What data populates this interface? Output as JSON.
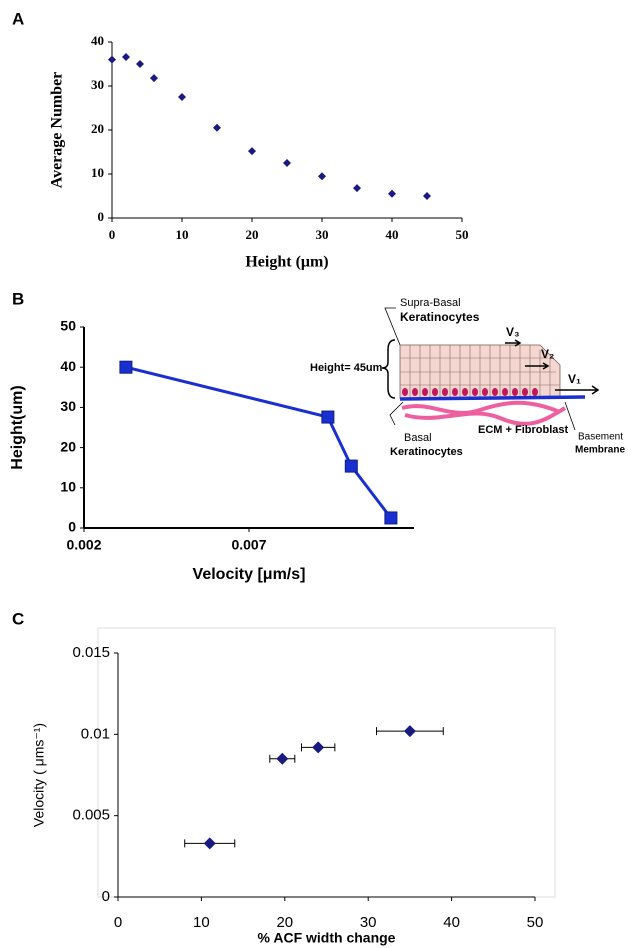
{
  "chart_data": [
    {
      "type": "scatter",
      "panel": "A",
      "x_label": "Height (μm)",
      "y_label": "Average Number",
      "x": [
        0,
        2,
        4,
        6,
        10,
        15,
        20,
        25,
        30,
        35,
        40,
        45
      ],
      "values": [
        36,
        36.6,
        35,
        31.8,
        27.5,
        20.5,
        15.2,
        12.5,
        9.5,
        6.8,
        5.5,
        5
      ],
      "xlim": [
        0,
        50
      ],
      "ylim": [
        0,
        40
      ],
      "xticks": [
        0,
        10,
        20,
        30,
        40,
        50
      ],
      "yticks": [
        0,
        10,
        20,
        30,
        40
      ],
      "color": "#1a1a80",
      "marker": "diamond"
    },
    {
      "type": "line",
      "panel": "B",
      "x_label": "Velocity [μm/s]",
      "y_label": "Height(um)",
      "x": [
        0.00327,
        0.00939,
        0.0101,
        0.0113
      ],
      "values": [
        40,
        27.6,
        15.4,
        2.5
      ],
      "xlim": [
        0.002,
        0.012
      ],
      "ylim": [
        0,
        50
      ],
      "xticks": [
        0.002,
        0.007
      ],
      "yticks": [
        0,
        10,
        20,
        30,
        40,
        50
      ],
      "color": "#1a2fd0",
      "marker": "square",
      "annotations": [
        "Supra-Basal",
        "Keratinocytes",
        "Height= 45um",
        "V₃",
        "V₂",
        "V₁",
        "Basal",
        "Keratinocytes",
        "ECM + Fibroblast",
        "Basement",
        "Membrane"
      ]
    },
    {
      "type": "scatter",
      "panel": "C",
      "x_label": "% ACF width change",
      "y_label": "Velocity ( μms⁻¹)",
      "x": [
        11,
        19.7,
        24,
        35
      ],
      "xerr": [
        3,
        1.5,
        2,
        4
      ],
      "values": [
        0.0033,
        0.0085,
        0.0092,
        0.0102
      ],
      "xlim": [
        0,
        50
      ],
      "ylim": [
        0,
        0.015
      ],
      "xticks": [
        0,
        10,
        20,
        30,
        40,
        50
      ],
      "yticks": [
        0,
        0.005,
        0.01,
        0.015
      ],
      "color": "#1a1a80",
      "marker": "diamond"
    }
  ]
}
